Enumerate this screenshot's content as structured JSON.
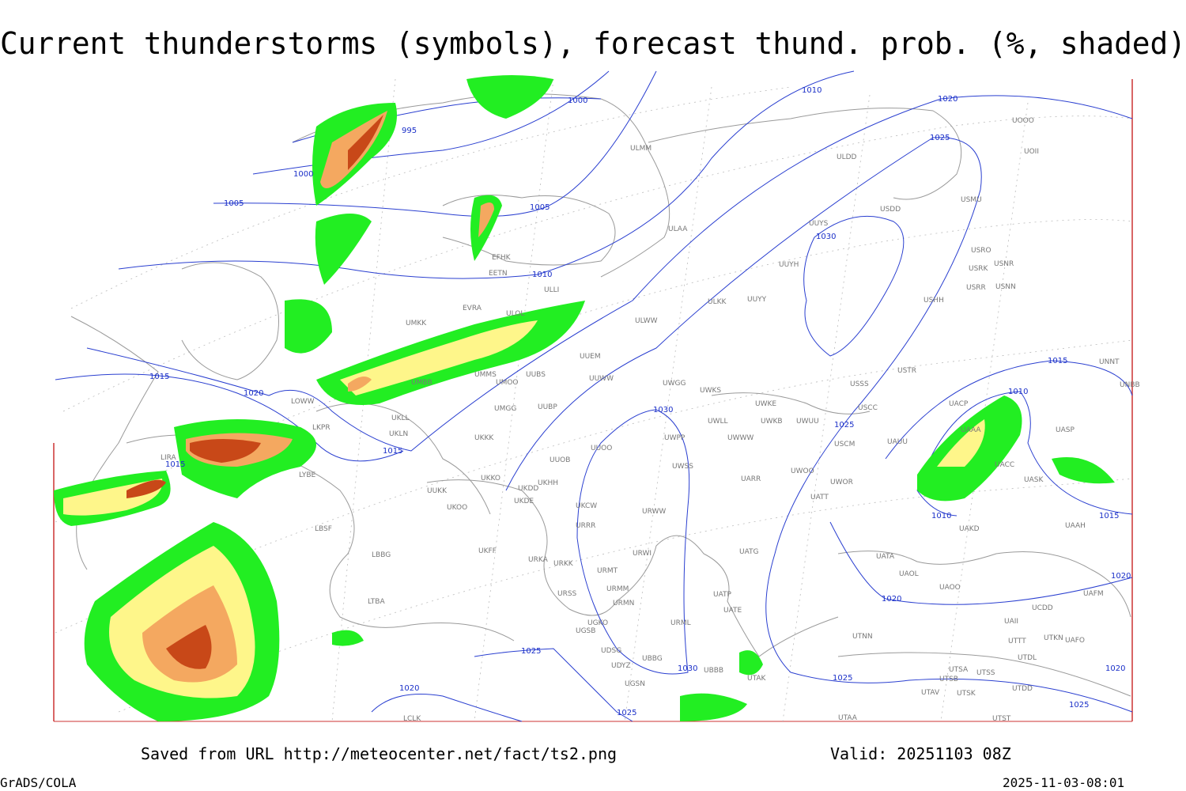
{
  "header": {
    "title": "Current thunderstorms (symbols), forecast thund. prob. (%, shaded)"
  },
  "footer": {
    "saved": "Saved from URL http://meteocenter.net/fact/ts2.png",
    "valid": "Valid: 20251103 08Z",
    "credit": "GrADS/COLA",
    "timestamp": "2025-11-03-08:01"
  },
  "isobar_labels": [
    "1000",
    "995",
    "1000",
    "1005",
    "1005",
    "1010",
    "1010",
    "1020",
    "1025",
    "1030",
    "1015",
    "1020",
    "1030",
    "1025",
    "1015",
    "1015",
    "1015",
    "1010",
    "1010",
    "1015",
    "1020",
    "1020",
    "1025",
    "1030",
    "1025",
    "1020",
    "1025",
    "1020",
    "1025"
  ],
  "stations": [
    "ULMM",
    "ULDD",
    "USDD",
    "USMU",
    "UOOO",
    "UOII",
    "UUYS",
    "ULAA",
    "EFHK",
    "EETN",
    "ULLI",
    "UUYH",
    "USRO",
    "USRK",
    "USNR",
    "USRR",
    "USNN",
    "USHH",
    "EVRA",
    "ULOL",
    "UMKK",
    "ULKK",
    "UUYY",
    "ULWW",
    "UUEM",
    "UMBB",
    "UMMS",
    "UMOO",
    "UUBS",
    "UUWW",
    "UWGG",
    "UWKS",
    "USSS",
    "USTR",
    "UNNT",
    "UNBB",
    "UWKE",
    "UWKB",
    "UWUU",
    "USCC",
    "UMGG",
    "UUBP",
    "UKLL",
    "UWLL",
    "UWWW",
    "UWPP",
    "USCM",
    "UAUU",
    "UACP",
    "UAAA",
    "UASP",
    "UKLN",
    "UKKK",
    "UUOO",
    "UUOB",
    "UWSS",
    "UACC",
    "UASK",
    "UKKO",
    "UKDD",
    "UKHH",
    "UWOO",
    "UWOR",
    "UARR",
    "UATT",
    "UUKK",
    "UKDE",
    "UKOO",
    "UKCW",
    "URWW",
    "URRR",
    "UAKD",
    "LBSF",
    "UAAH",
    "UKFF",
    "URKA",
    "URKK",
    "URWI",
    "UATG",
    "UATA",
    "LBBG",
    "URMT",
    "UAOL",
    "UAOO",
    "URSS",
    "URMM",
    "URMN",
    "UAFM",
    "UATP",
    "UATE",
    "LTBA",
    "UAII",
    "UCDD",
    "UGKO",
    "UGSB",
    "URML",
    "UTNN",
    "UTTT",
    "UTKN",
    "UAFO",
    "UTDL",
    "UDSG",
    "UDYZ",
    "UBBG",
    "UBBB",
    "UTSA",
    "UTSS",
    "UTAK",
    "UTSB",
    "UGSN",
    "UTAV",
    "UTSK",
    "UTDD",
    "LCLK",
    "UTAA",
    "UTST",
    "LYBE",
    "LIRA",
    "LOWW",
    "LKPR"
  ]
}
